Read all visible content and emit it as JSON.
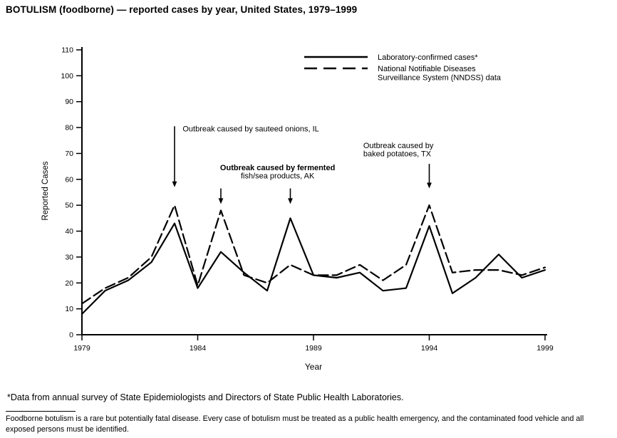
{
  "title": "BOTULISM (foodborne) — reported cases by year, United States, 1979–1999",
  "footnote": "*Data from annual survey of State Epidemiologists and Directors of State Public Health Laboratories.",
  "disease_note": "Foodborne botulism is a rare but potentially fatal disease. Every case of botulism must be treated as a public health emergency, and the contaminated food vehicle and all exposed persons must be identified.",
  "chart_data": {
    "type": "line",
    "xlabel": "Year",
    "ylabel": "Reported Cases",
    "ylim": [
      0,
      110
    ],
    "ytick_step": 10,
    "x": [
      1979,
      1980,
      1981,
      1982,
      1983,
      1984,
      1985,
      1986,
      1987,
      1988,
      1989,
      1990,
      1991,
      1992,
      1993,
      1994,
      1995,
      1996,
      1997,
      1998,
      1999
    ],
    "xticks_labeled": [
      1979,
      1984,
      1989,
      1994,
      1999
    ],
    "grid": false,
    "line_color": "#000000",
    "legend_position": "top-right-inside",
    "series": [
      {
        "name": "Laboratory-confirmed cases*",
        "label_lines": [
          "Laboratory-confirmed cases*"
        ],
        "style": "solid",
        "values": [
          8,
          17,
          21,
          28,
          43,
          18,
          32,
          24,
          17,
          45,
          23,
          22,
          24,
          17,
          18,
          42,
          16,
          22,
          31,
          22,
          25
        ]
      },
      {
        "name": "National Notifiable Diseases Surveillance System (NNDSS) data",
        "label_lines": [
          "National Notifiable Diseases",
          "Surveillance System (NNDSS) data"
        ],
        "style": "dashed",
        "values": [
          12,
          18,
          22,
          30,
          50,
          19,
          48,
          23,
          20,
          27,
          23,
          23,
          27,
          21,
          27,
          50,
          24,
          25,
          25,
          23,
          26
        ]
      }
    ],
    "annotations": [
      {
        "lines": [
          "Outbreak caused by sauteed onions, IL"
        ],
        "line_bold": [
          false
        ],
        "anchor": "start",
        "label_year": 1983.35,
        "label_value": 78.5,
        "arrows": [
          {
            "year": 1983,
            "from_value": 80.5,
            "to_value": 57
          }
        ]
      },
      {
        "lines": [
          "Outbreak caused by fermented",
          "fish/sea products, AK"
        ],
        "line_bold": [
          true,
          false
        ],
        "anchor": "middle",
        "label_year": 1987.45,
        "label_value": 63.5,
        "arrows": [
          {
            "year": 1985,
            "from_value": 56.5,
            "to_value": 50.5
          },
          {
            "year": 1988,
            "from_value": 56.5,
            "to_value": 50.5
          }
        ]
      },
      {
        "lines": [
          "Outbreak caused by",
          "baked potatoes, TX"
        ],
        "line_bold": [
          false,
          false
        ],
        "anchor": "start",
        "label_year": 1991.15,
        "label_value": 72,
        "arrows": [
          {
            "year": 1994,
            "from_value": 66,
            "to_value": 56.5
          }
        ]
      }
    ]
  }
}
